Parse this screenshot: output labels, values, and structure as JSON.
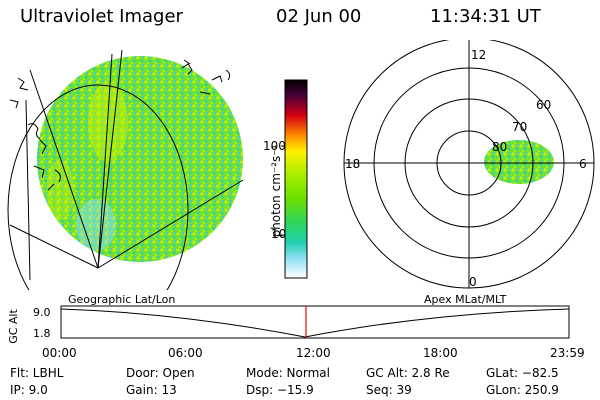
{
  "header": {
    "instrument": "Ultraviolet Imager",
    "date": "02 Jun 00",
    "time": "11:34:31 UT"
  },
  "colorbar": {
    "unit_label": "photon cm⁻²s⁻¹",
    "ticks": [
      {
        "label": "100",
        "value": 100
      },
      {
        "label": "10",
        "value": 10
      }
    ],
    "colors": [
      "#000000",
      "#4a003a",
      "#8c0030",
      "#d60010",
      "#ff4000",
      "#ff8c00",
      "#ffc800",
      "#fff000",
      "#d6f500",
      "#a6ef00",
      "#6be000",
      "#2ed45a",
      "#22d0b0",
      "#3ac8e8",
      "#8ee0f4",
      "#ffffff"
    ]
  },
  "polar_plot": {
    "mlt_labels": {
      "top": "12",
      "left": "18",
      "right": "6",
      "bottom": "0"
    },
    "lat_labels": [
      "60",
      "70",
      "80"
    ]
  },
  "timeline": {
    "left_caption": "Geographic Lat/Lon",
    "right_caption": "Apex MLat/MLT",
    "ylabel": "GC Alt",
    "yticks": [
      "9.0",
      "1.8"
    ],
    "xticks": [
      "00:00",
      "06:00",
      "12:00",
      "18:00",
      "23:59"
    ],
    "marker_hours": 11.575,
    "marker_color": "#ff0000"
  },
  "status": {
    "row1": [
      "Flt: LBHL",
      "Door: Open",
      "Mode: Normal",
      "GC Alt: 2.8 Re",
      "GLat: −82.5"
    ],
    "row2": [
      "IP:  9.0",
      "Gain: 13",
      "Dsp:  −15.9",
      "Seq: 39",
      "GLon: 250.9"
    ]
  }
}
